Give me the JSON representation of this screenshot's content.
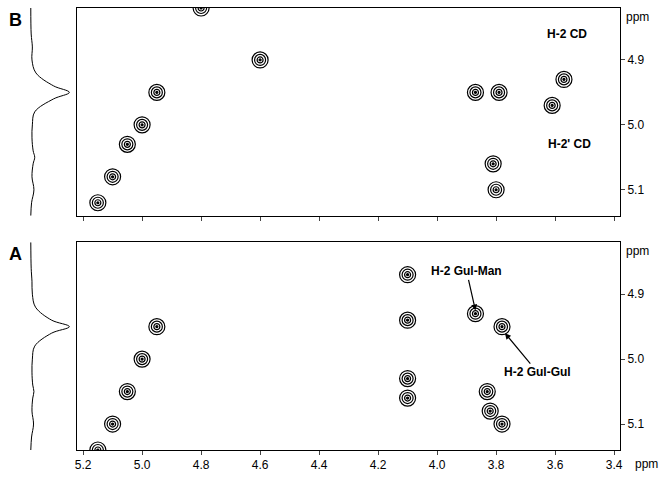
{
  "chart_data": [
    {
      "title": "B",
      "type": "contour",
      "y_unit": "ppm",
      "tick_labels": "y",
      "xlim": [
        5.22,
        3.38
      ],
      "xticks": [
        5.2,
        {
          "value": 5,
          "label": "5.0"
        },
        4.8,
        4.6,
        4.4,
        4.2,
        {
          "value": 4,
          "label": "4.0"
        },
        3.8,
        3.6,
        3.4
      ],
      "ylim": [
        5.14,
        4.82
      ],
      "yticks": [
        4.9,
        {
          "value": 5,
          "label": "5.0"
        },
        5.1
      ],
      "peaks": {
        "x": [
          4.8,
          4.95,
          5.0,
          5.05,
          5.1,
          5.15,
          4.6,
          3.87,
          3.79,
          3.81,
          3.8,
          3.61,
          3.57
        ],
        "y": [
          4.82,
          4.95,
          5.0,
          5.03,
          5.08,
          5.12,
          4.9,
          4.95,
          4.95,
          5.06,
          5.1,
          4.97,
          4.93
        ]
      },
      "projection": {
        "y": [
          4.82,
          4.86,
          4.88,
          4.9,
          4.92,
          4.94,
          4.95,
          4.96,
          4.98,
          5.0,
          5.02,
          5.04,
          5.05,
          5.06,
          5.08,
          5.1,
          5.12,
          5.14
        ],
        "values": [
          0.02,
          0.03,
          0.06,
          0.05,
          0.15,
          0.6,
          1,
          0.6,
          0.12,
          0.06,
          0.05,
          0.08,
          0.12,
          0.08,
          0.05,
          0.1,
          0.04,
          0.02
        ],
        "xlim": [
          0,
          1.05
        ]
      },
      "annotations": [
        {
          "text": "H-2 CD",
          "x": 3.56,
          "y": 4.86
        },
        {
          "text": "H-2' CD",
          "x": 3.55,
          "y": 5.03
        }
      ]
    },
    {
      "title": "A",
      "type": "contour",
      "x_unit": "ppm",
      "y_unit": "ppm",
      "xlim": [
        5.22,
        3.38
      ],
      "xticks": [
        5.2,
        {
          "value": 5,
          "label": "5.0"
        },
        4.8,
        4.6,
        4.4,
        4.2,
        {
          "value": 4,
          "label": "4.0"
        },
        3.8,
        3.6,
        3.4
      ],
      "ylim": [
        5.14,
        4.82
      ],
      "yticks": [
        4.9,
        {
          "value": 5,
          "label": "5.0"
        },
        5.1
      ],
      "peaks": {
        "x": [
          4.95,
          5.0,
          5.05,
          5.1,
          5.15,
          4.1,
          4.1,
          4.1,
          4.1,
          3.87,
          3.78,
          3.83,
          3.82,
          3.78
        ],
        "y": [
          4.95,
          5.0,
          5.05,
          5.1,
          5.14,
          4.87,
          4.94,
          5.03,
          5.06,
          4.93,
          4.95,
          5.05,
          5.08,
          5.1
        ]
      },
      "projection": {
        "y": [
          4.82,
          4.86,
          4.88,
          4.9,
          4.92,
          4.94,
          4.95,
          4.96,
          4.98,
          5.0,
          5.02,
          5.04,
          5.05,
          5.06,
          5.08,
          5.1,
          5.12,
          5.14
        ],
        "values": [
          0.02,
          0.03,
          0.05,
          0.06,
          0.14,
          0.55,
          1,
          0.55,
          0.12,
          0.06,
          0.05,
          0.07,
          0.1,
          0.07,
          0.05,
          0.09,
          0.04,
          0.02
        ],
        "xlim": [
          0,
          1.05
        ]
      },
      "annotations": [
        {
          "text": "H-2 Gul-Man",
          "x": 3.9,
          "y": 4.865,
          "arrow_to": [
            3.87,
            4.925
          ]
        },
        {
          "text": "H-2 Gul-Gul",
          "x": 3.66,
          "y": 5.02,
          "arrow_to": [
            3.77,
            4.96
          ]
        }
      ]
    }
  ]
}
